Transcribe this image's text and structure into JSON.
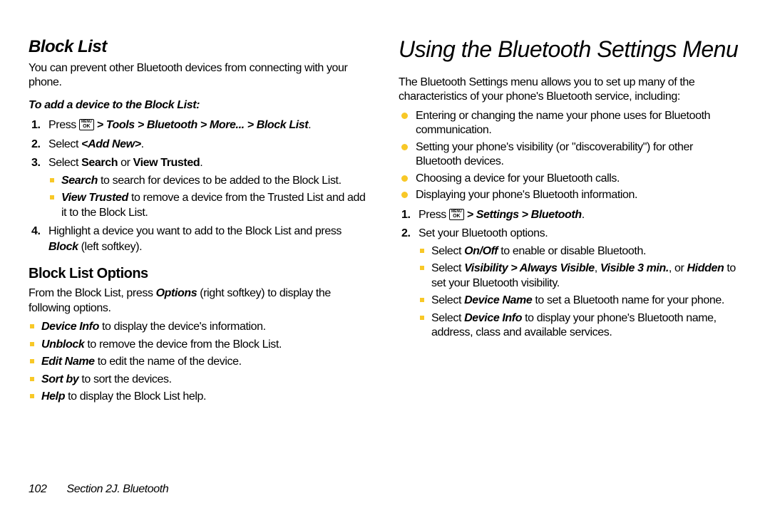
{
  "colors": {
    "accent": "#f8c827",
    "text": "#000000",
    "bg": "#ffffff"
  },
  "left": {
    "heading": "Block List",
    "intro": "You can prevent other Bluetooth devices from connecting with your phone.",
    "instr": "To add a device to the Block List:",
    "step1_pre": "Press ",
    "step1_path": " > Tools > Bluetooth > More... > Block List",
    "step2_a": "Select ",
    "step2_b": "<Add New>",
    "step3_a": "Select ",
    "step3_b": "Search",
    "step3_c": " or ",
    "step3_d": "View Trusted",
    "sub_search_a": "Search",
    "sub_search_b": " to search for devices to be added to the Block List.",
    "sub_view_a": "View Trusted",
    "sub_view_b": " to remove a device from the Trusted List and add it to the Block List.",
    "step4_a": "Highlight a device you want to add to the Block List and press ",
    "step4_b": "Block",
    "step4_c": " (left softkey).",
    "opts_heading": "Block List Options",
    "opts_intro_a": "From the Block List, press ",
    "opts_intro_b": "Options",
    "opts_intro_c": " (right softkey) to display the following options.",
    "o1a": "Device Info",
    "o1b": " to display the device's information.",
    "o2a": "Unblock",
    "o2b": " to remove the device from the Block List.",
    "o3a": "Edit Name",
    "o3b": " to edit the name of the device.",
    "o4a": "Sort by",
    "o4b": " to sort the devices.",
    "o5a": "Help",
    "o5b": " to display the Block List help."
  },
  "right": {
    "heading": "Using the Bluetooth Settings Menu",
    "intro": "The Bluetooth Settings menu allows you to set up many of the characteristics of your phone's Bluetooth service, including:",
    "b1": "Entering or changing the name your phone uses for Bluetooth communication.",
    "b2": "Setting your phone's visibility (or \"discoverability\") for other Bluetooth devices.",
    "b3": "Choosing a device for your Bluetooth calls.",
    "b4": "Displaying your phone's Bluetooth information.",
    "s1_pre": "Press ",
    "s1_path": " > Settings > Bluetooth",
    "s2": "Set your Bluetooth options.",
    "s2a_a": "Select ",
    "s2a_b": "On/Off",
    "s2a_c": " to enable or disable Bluetooth.",
    "s2b_a": "Select ",
    "s2b_b": "Visibility > Always Visible",
    "s2b_c": ", ",
    "s2b_d": "Visible 3 min.",
    "s2b_e": ", or ",
    "s2b_f": "Hidden",
    "s2b_g": " to set your Bluetooth visibility.",
    "s2c_a": "Select ",
    "s2c_b": "Device Name",
    "s2c_c": " to set a Bluetooth name for your phone.",
    "s2d_a": "Select ",
    "s2d_b": "Device Info",
    "s2d_c": " to display your phone's Bluetooth name, address, class and available services."
  },
  "footer": {
    "page": "102",
    "section": "Section 2J. Bluetooth"
  },
  "menuok": {
    "top": "MENU",
    "bot": "OK"
  }
}
